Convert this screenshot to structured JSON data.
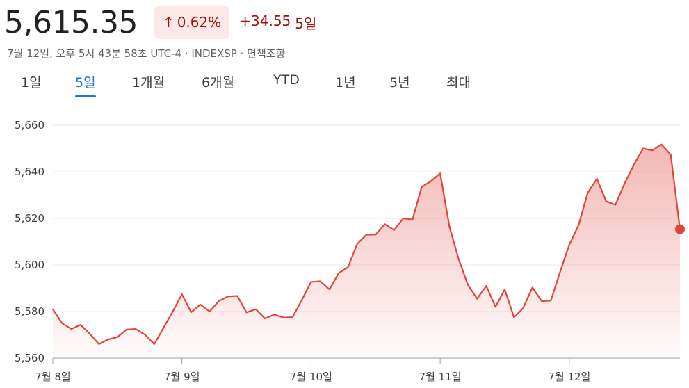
{
  "quote": {
    "price": "5,615.35",
    "change_percent": "0.62%",
    "change_points": "+34.55",
    "change_period": "5일",
    "direction": "up",
    "meta": "7월 12일, 오후 5시 43분 58초 UTC-4 · INDEXSP · 면책조항"
  },
  "colors": {
    "line": "#e0443a",
    "badge_bg": "#fce8e6",
    "negative_text": "#a50e0e",
    "active_tab": "#1a73e8"
  },
  "tabs": [
    {
      "label": "1일",
      "active": false
    },
    {
      "label": "5일",
      "active": true
    },
    {
      "label": "1개월",
      "active": false
    },
    {
      "label": "6개월",
      "active": false
    },
    {
      "label": "YTD",
      "active": false
    },
    {
      "label": "1년",
      "active": false
    },
    {
      "label": "5년",
      "active": false
    },
    {
      "label": "최대",
      "active": false
    }
  ],
  "chart_data": {
    "type": "area",
    "title": "",
    "xlabel": "",
    "ylabel": "",
    "ylim": [
      5560,
      5660
    ],
    "y_ticks": [
      "5,560",
      "5,580",
      "5,600",
      "5,620",
      "5,640",
      "5,660"
    ],
    "grid": true,
    "days": [
      {
        "label": "7월 8일",
        "start": 0
      },
      {
        "label": "7월 9일",
        "start": 14
      },
      {
        "label": "7월 10일",
        "start": 28
      },
      {
        "label": "7월 11일",
        "start": 42
      },
      {
        "label": "7월 12일",
        "start": 56
      }
    ],
    "series": [
      {
        "values": [
          5581,
          5575,
          5572.5,
          5574.3,
          5570.5,
          5566,
          5568,
          5569,
          5572.3,
          5572.5,
          5570,
          5566,
          5573,
          5580,
          5587.4,
          5579.7,
          5583,
          5580,
          5584.5,
          5586.5,
          5586.7,
          5579.6,
          5581,
          5577,
          5578.7,
          5577.4,
          5577.6,
          5585,
          5592.7,
          5593,
          5589.5,
          5596.5,
          5599,
          5609,
          5613,
          5613,
          5617.5,
          5615,
          5620,
          5619.5,
          5633.5,
          5636,
          5639.3,
          5616.5,
          5602.5,
          5591.5,
          5585.5,
          5591,
          5582,
          5589.5,
          5577.5,
          5581.5,
          5590.3,
          5584.5,
          5584.7,
          5597,
          5608.7,
          5617,
          5631,
          5637,
          5627.3,
          5625.8,
          5635,
          5643,
          5650,
          5649.2,
          5651.7,
          5647.3,
          5615.35
        ]
      }
    ]
  }
}
